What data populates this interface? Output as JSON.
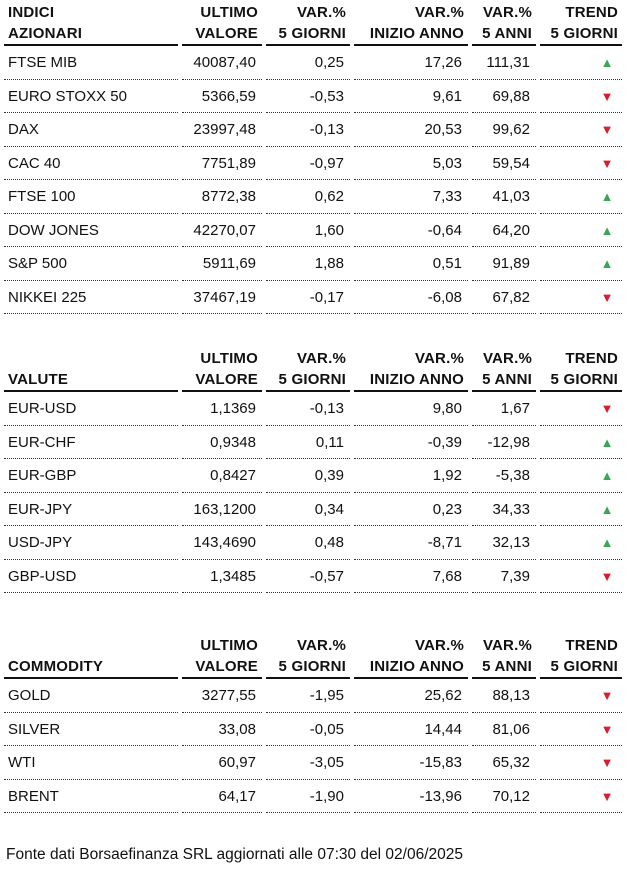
{
  "columns": [
    [
      "ULTIMO",
      "VALORE"
    ],
    [
      "VAR.%",
      "5 GIORNI"
    ],
    [
      "VAR.%",
      "INIZIO ANNO"
    ],
    [
      "VAR.%",
      "5 ANNI"
    ],
    [
      "TREND",
      "5 GIORNI"
    ]
  ],
  "sections": [
    {
      "title": [
        "INDICI",
        "AZIONARI"
      ],
      "rows": [
        {
          "name": "FTSE MIB",
          "ultimo": "40087,40",
          "var5g": "0,25",
          "varInizio": "17,26",
          "var5a": "111,31",
          "trend": "up"
        },
        {
          "name": "EURO STOXX 50",
          "ultimo": "5366,59",
          "var5g": "-0,53",
          "varInizio": "9,61",
          "var5a": "69,88",
          "trend": "down"
        },
        {
          "name": "DAX",
          "ultimo": "23997,48",
          "var5g": "-0,13",
          "varInizio": "20,53",
          "var5a": "99,62",
          "trend": "down"
        },
        {
          "name": "CAC 40",
          "ultimo": "7751,89",
          "var5g": "-0,97",
          "varInizio": "5,03",
          "var5a": "59,54",
          "trend": "down"
        },
        {
          "name": "FTSE 100",
          "ultimo": "8772,38",
          "var5g": "0,62",
          "varInizio": "7,33",
          "var5a": "41,03",
          "trend": "up"
        },
        {
          "name": "DOW JONES",
          "ultimo": "42270,07",
          "var5g": "1,60",
          "varInizio": "-0,64",
          "var5a": "64,20",
          "trend": "up"
        },
        {
          "name": "S&P 500",
          "ultimo": "5911,69",
          "var5g": "1,88",
          "varInizio": "0,51",
          "var5a": "91,89",
          "trend": "up"
        },
        {
          "name": "NIKKEI 225",
          "ultimo": "37467,19",
          "var5g": "-0,17",
          "varInizio": "-6,08",
          "var5a": "67,82",
          "trend": "down"
        }
      ]
    },
    {
      "title": [
        "",
        "VALUTE"
      ],
      "rows": [
        {
          "name": "EUR-USD",
          "ultimo": "1,1369",
          "var5g": "-0,13",
          "varInizio": "9,80",
          "var5a": "1,67",
          "trend": "down"
        },
        {
          "name": "EUR-CHF",
          "ultimo": "0,9348",
          "var5g": "0,11",
          "varInizio": "-0,39",
          "var5a": "-12,98",
          "trend": "up"
        },
        {
          "name": "EUR-GBP",
          "ultimo": "0,8427",
          "var5g": "0,39",
          "varInizio": "1,92",
          "var5a": "-5,38",
          "trend": "up"
        },
        {
          "name": "EUR-JPY",
          "ultimo": "163,1200",
          "var5g": "0,34",
          "varInizio": "0,23",
          "var5a": "34,33",
          "trend": "up"
        },
        {
          "name": "USD-JPY",
          "ultimo": "143,4690",
          "var5g": "0,48",
          "varInizio": "-8,71",
          "var5a": "32,13",
          "trend": "up"
        },
        {
          "name": "GBP-USD",
          "ultimo": "1,3485",
          "var5g": "-0,57",
          "varInizio": "7,68",
          "var5a": "7,39",
          "trend": "down"
        }
      ]
    },
    {
      "title": [
        "",
        "COMMODITY"
      ],
      "rows": [
        {
          "name": "GOLD",
          "ultimo": "3277,55",
          "var5g": "-1,95",
          "varInizio": "25,62",
          "var5a": "88,13",
          "trend": "down"
        },
        {
          "name": "SILVER",
          "ultimo": "33,08",
          "var5g": "-0,05",
          "varInizio": "14,44",
          "var5a": "81,06",
          "trend": "down"
        },
        {
          "name": "WTI",
          "ultimo": "60,97",
          "var5g": "-3,05",
          "varInizio": "-15,83",
          "var5a": "65,32",
          "trend": "down"
        },
        {
          "name": "BRENT",
          "ultimo": "64,17",
          "var5g": "-1,90",
          "varInizio": "-13,96",
          "var5a": "70,12",
          "trend": "down"
        }
      ]
    }
  ],
  "footer": "Fonte dati Borsaefinanza SRL aggiornati alle 07:30 del 02/06/2025",
  "colors": {
    "up": "#3aa757",
    "down": "#d81e2a"
  },
  "icons": {
    "up": "triangle-up-icon",
    "down": "triangle-down-icon"
  }
}
